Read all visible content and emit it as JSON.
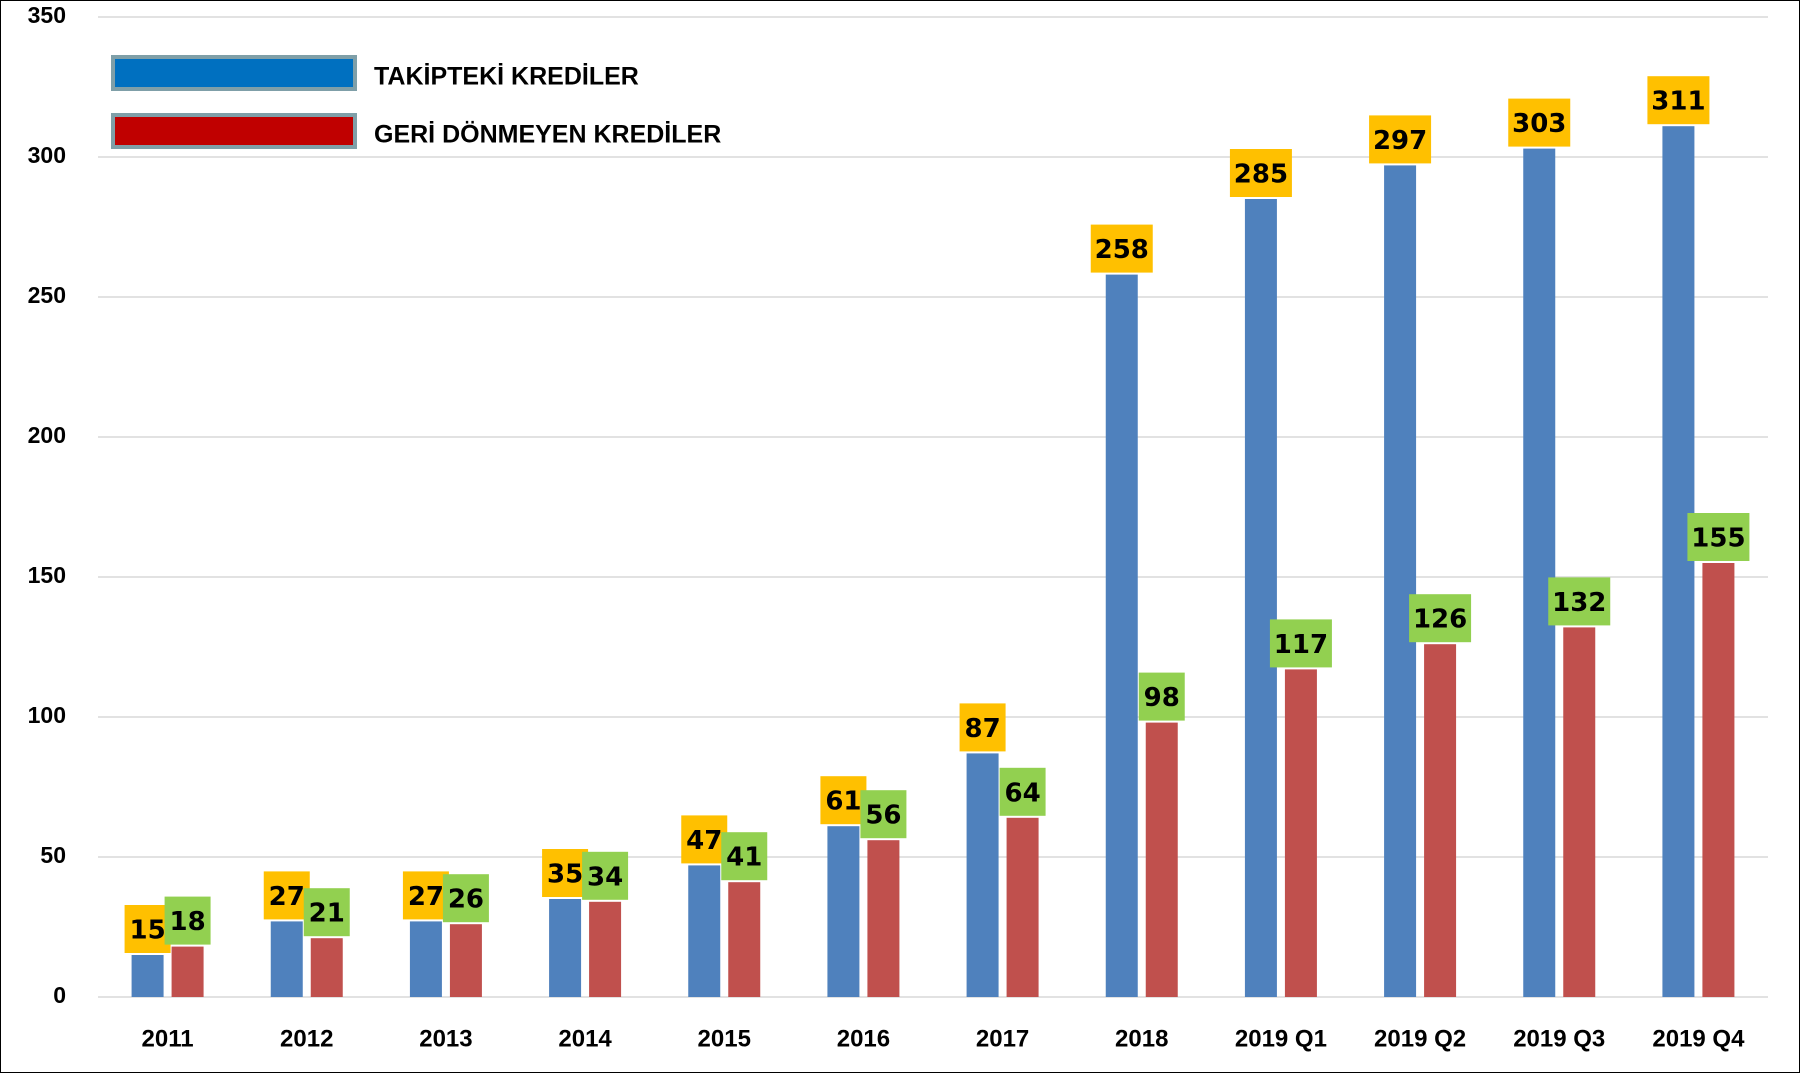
{
  "chart_data": {
    "type": "bar",
    "categories": [
      "2011",
      "2012",
      "2013",
      "2014",
      "2015",
      "2016",
      "2017",
      "2018",
      "2019 Q1",
      "2019 Q2",
      "2019 Q3",
      "2019 Q4"
    ],
    "series": [
      {
        "name": "TAKİPTEKİ KREDİLER",
        "color": "#4f81bd",
        "legend_color": "#0070c0",
        "label_color": "#ffc000",
        "values": [
          15,
          27,
          27,
          35,
          47,
          61,
          87,
          258,
          285,
          297,
          303,
          311
        ]
      },
      {
        "name": "GERİ DÖNMEYEN KREDİLER",
        "color": "#c0504d",
        "legend_color": "#c00000",
        "label_color": "#92d050",
        "values": [
          18,
          21,
          26,
          34,
          41,
          56,
          64,
          98,
          117,
          126,
          132,
          155
        ]
      }
    ],
    "ylim": [
      0,
      350
    ],
    "yticks": [
      0,
      50,
      100,
      150,
      200,
      250,
      300,
      350
    ],
    "grid": true,
    "legend": "top-left"
  }
}
